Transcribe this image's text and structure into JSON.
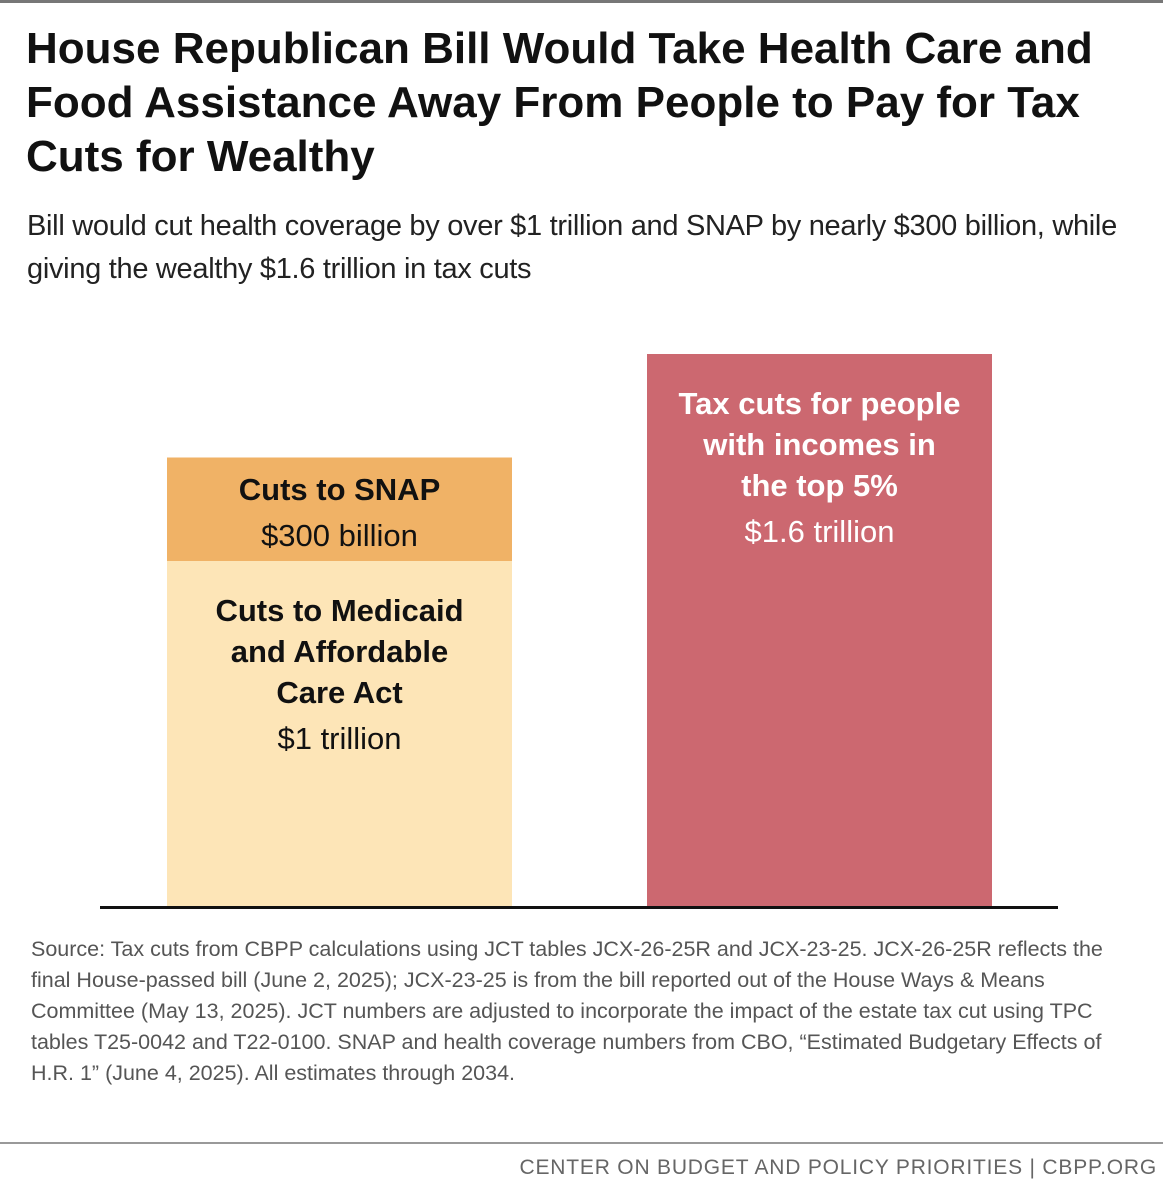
{
  "title": "House Republican Bill Would Take Health Care and Food Assistance Away From People to Pay for Tax Cuts for Wealthy",
  "subtitle": "Bill would cut health coverage by over $1 trillion and SNAP by nearly $300 billion, while giving the wealthy $1.6 trillion in tax cuts",
  "chart_data": {
    "type": "bar",
    "stacked": true,
    "unit": "billion dollars",
    "grid": false,
    "categories": [
      "",
      ""
    ],
    "series": [
      {
        "label_lines": [
          "Cuts to Medicaid",
          "and Affordable",
          "Care Act"
        ],
        "value_label": "$1 trillion",
        "values": [
          1000,
          0
        ],
        "color": "#fde5b7",
        "text_color": "#111111"
      },
      {
        "label_lines": [
          "Cuts to SNAP"
        ],
        "value_label": "$300 billion",
        "values": [
          300,
          0
        ],
        "color": "#f0b266",
        "text_color": "#111111"
      },
      {
        "label_lines": [
          "Tax cuts for people",
          "with incomes in",
          "the top 5%"
        ],
        "value_label": "$1.6 trillion",
        "values": [
          0,
          1600
        ],
        "color": "#cc6870",
        "text_color": "#ffffff"
      }
    ],
    "ylim": [
      0,
      1600
    ]
  },
  "source": "Source: Tax cuts from CBPP calculations using JCT tables JCX-26-25R and JCX-23-25. JCX-26-25R reflects the final House-passed bill (June 2, 2025); JCX-23-25 is from the bill reported out of the House Ways & Means Committee (May 13, 2025). JCT numbers are adjusted to incorporate the impact of the estate tax cut using TPC tables T25-0042 and T22-0100. SNAP and health coverage numbers from CBO, “Estimated Budgetary Effects of H.R. 1” (June 4, 2025). All estimates through 2034.",
  "footer": "CENTER ON BUDGET AND POLICY PRIORITIES | CBPP.ORG"
}
